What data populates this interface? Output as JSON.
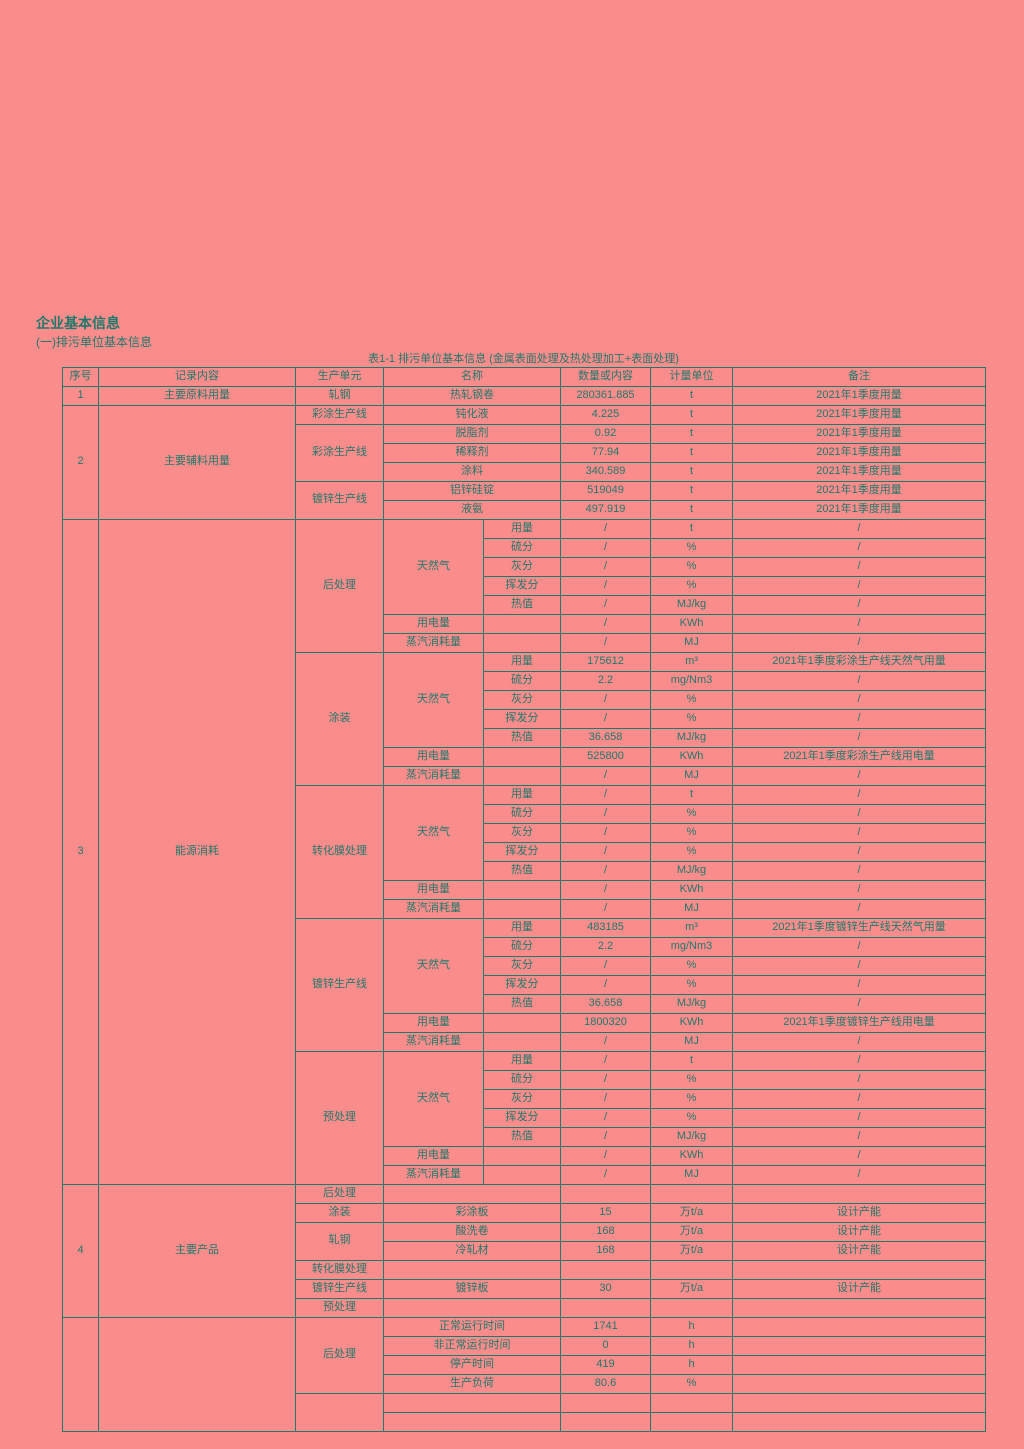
{
  "page": {
    "heading": "企业基本信息",
    "subheading": "(一)排污单位基本信息",
    "table_caption": "表1-1 排污单位基本信息 (金属表面处理及热处理加工+表面处理)"
  },
  "colors": {
    "background": "#fa8c8c",
    "ink": "#1f7a6b"
  },
  "table": {
    "header": [
      {
        "t": "序号"
      },
      {
        "t": "记录内容"
      },
      {
        "t": "生产单元"
      },
      {
        "t": "名称",
        "c": 2
      },
      {
        "t": "数量或内容"
      },
      {
        "t": "计量单位"
      },
      {
        "t": "备注"
      }
    ],
    "rows": [
      [
        {
          "t": "1"
        },
        {
          "t": "主要原料用量"
        },
        {
          "t": "轧钢"
        },
        {
          "t": "热轧钢卷",
          "c": 2
        },
        {
          "t": "280361.885"
        },
        {
          "t": "t"
        },
        {
          "t": "2021年1季度用量"
        }
      ],
      [
        {
          "t": "2",
          "r": 6
        },
        {
          "t": "主要辅料用量",
          "r": 6
        },
        {
          "t": "彩涂生产线"
        },
        {
          "t": "钝化液",
          "c": 2
        },
        {
          "t": "4.225"
        },
        {
          "t": "t"
        },
        {
          "t": "2021年1季度用量"
        }
      ],
      [
        {
          "t": "彩涂生产线",
          "r": 3
        },
        {
          "t": "脱脂剂",
          "c": 2
        },
        {
          "t": "0.92"
        },
        {
          "t": "t"
        },
        {
          "t": "2021年1季度用量"
        }
      ],
      [
        {
          "t": "稀释剂",
          "c": 2
        },
        {
          "t": "77.94"
        },
        {
          "t": "t"
        },
        {
          "t": "2021年1季度用量"
        }
      ],
      [
        {
          "t": "涂料",
          "c": 2
        },
        {
          "t": "340.589"
        },
        {
          "t": "t"
        },
        {
          "t": "2021年1季度用量"
        }
      ],
      [
        {
          "t": "镀锌生产线",
          "r": 2
        },
        {
          "t": "铝锌硅锭",
          "c": 2
        },
        {
          "t": "519049"
        },
        {
          "t": "t"
        },
        {
          "t": "2021年1季度用量"
        }
      ],
      [
        {
          "t": "液氨",
          "c": 2
        },
        {
          "t": "497.919"
        },
        {
          "t": "t"
        },
        {
          "t": "2021年1季度用量"
        }
      ],
      [
        {
          "t": "3",
          "r": 35
        },
        {
          "t": "能源消耗",
          "r": 35
        },
        {
          "t": "后处理",
          "r": 7
        },
        {
          "t": "天然气",
          "r": 5
        },
        {
          "t": "用量"
        },
        {
          "t": "/"
        },
        {
          "t": "t"
        },
        {
          "t": "/"
        }
      ],
      [
        {
          "t": "硫分"
        },
        {
          "t": "/"
        },
        {
          "t": "%"
        },
        {
          "t": "/"
        }
      ],
      [
        {
          "t": "灰分"
        },
        {
          "t": "/"
        },
        {
          "t": "%"
        },
        {
          "t": "/"
        }
      ],
      [
        {
          "t": "挥发分"
        },
        {
          "t": "/"
        },
        {
          "t": "%"
        },
        {
          "t": "/"
        }
      ],
      [
        {
          "t": "热值"
        },
        {
          "t": "/"
        },
        {
          "t": "MJ/kg"
        },
        {
          "t": "/"
        }
      ],
      [
        {
          "t": "用电量"
        },
        {
          "t": ""
        },
        {
          "t": "/"
        },
        {
          "t": "KWh"
        },
        {
          "t": "/"
        }
      ],
      [
        {
          "t": "蒸汽消耗量"
        },
        {
          "t": ""
        },
        {
          "t": "/"
        },
        {
          "t": "MJ"
        },
        {
          "t": "/"
        }
      ],
      [
        {
          "t": "涂装",
          "r": 7
        },
        {
          "t": "天然气",
          "r": 5
        },
        {
          "t": "用量"
        },
        {
          "t": "175612"
        },
        {
          "t": "m³"
        },
        {
          "t": "2021年1季度彩涂生产线天然气用量"
        }
      ],
      [
        {
          "t": "硫分"
        },
        {
          "t": "2.2"
        },
        {
          "t": "mg/Nm3"
        },
        {
          "t": "/"
        }
      ],
      [
        {
          "t": "灰分"
        },
        {
          "t": "/"
        },
        {
          "t": "%"
        },
        {
          "t": "/"
        }
      ],
      [
        {
          "t": "挥发分"
        },
        {
          "t": "/"
        },
        {
          "t": "%"
        },
        {
          "t": "/"
        }
      ],
      [
        {
          "t": "热值"
        },
        {
          "t": "36.658"
        },
        {
          "t": "MJ/kg"
        },
        {
          "t": "/"
        }
      ],
      [
        {
          "t": "用电量"
        },
        {
          "t": ""
        },
        {
          "t": "525800"
        },
        {
          "t": "KWh"
        },
        {
          "t": "2021年1季度彩涂生产线用电量"
        }
      ],
      [
        {
          "t": "蒸汽消耗量"
        },
        {
          "t": ""
        },
        {
          "t": "/"
        },
        {
          "t": "MJ"
        },
        {
          "t": "/"
        }
      ],
      [
        {
          "t": "转化膜处理",
          "r": 7
        },
        {
          "t": "天然气",
          "r": 5
        },
        {
          "t": "用量"
        },
        {
          "t": "/"
        },
        {
          "t": "t"
        },
        {
          "t": "/"
        }
      ],
      [
        {
          "t": "硫分"
        },
        {
          "t": "/"
        },
        {
          "t": "%"
        },
        {
          "t": "/"
        }
      ],
      [
        {
          "t": "灰分"
        },
        {
          "t": "/"
        },
        {
          "t": "%"
        },
        {
          "t": "/"
        }
      ],
      [
        {
          "t": "挥发分"
        },
        {
          "t": "/"
        },
        {
          "t": "%"
        },
        {
          "t": "/"
        }
      ],
      [
        {
          "t": "热值"
        },
        {
          "t": "/"
        },
        {
          "t": "MJ/kg"
        },
        {
          "t": "/"
        }
      ],
      [
        {
          "t": "用电量"
        },
        {
          "t": ""
        },
        {
          "t": "/"
        },
        {
          "t": "KWh"
        },
        {
          "t": "/"
        }
      ],
      [
        {
          "t": "蒸汽消耗量"
        },
        {
          "t": ""
        },
        {
          "t": "/"
        },
        {
          "t": "MJ"
        },
        {
          "t": "/"
        }
      ],
      [
        {
          "t": "镀锌生产线",
          "r": 7
        },
        {
          "t": "天然气",
          "r": 5
        },
        {
          "t": "用量"
        },
        {
          "t": "483185"
        },
        {
          "t": "m³"
        },
        {
          "t": "2021年1季度镀锌生产线天然气用量"
        }
      ],
      [
        {
          "t": "硫分"
        },
        {
          "t": "2.2"
        },
        {
          "t": "mg/Nm3"
        },
        {
          "t": "/"
        }
      ],
      [
        {
          "t": "灰分"
        },
        {
          "t": "/"
        },
        {
          "t": "%"
        },
        {
          "t": "/"
        }
      ],
      [
        {
          "t": "挥发分"
        },
        {
          "t": "/"
        },
        {
          "t": "%"
        },
        {
          "t": "/"
        }
      ],
      [
        {
          "t": "热值"
        },
        {
          "t": "36.658"
        },
        {
          "t": "MJ/kg"
        },
        {
          "t": "/"
        }
      ],
      [
        {
          "t": "用电量"
        },
        {
          "t": ""
        },
        {
          "t": "1800320"
        },
        {
          "t": "KWh"
        },
        {
          "t": "2021年1季度镀锌生产线用电量"
        }
      ],
      [
        {
          "t": "蒸汽消耗量"
        },
        {
          "t": ""
        },
        {
          "t": "/"
        },
        {
          "t": "MJ"
        },
        {
          "t": "/"
        }
      ],
      [
        {
          "t": "预处理",
          "r": 7
        },
        {
          "t": "天然气",
          "r": 5
        },
        {
          "t": "用量"
        },
        {
          "t": "/"
        },
        {
          "t": "t"
        },
        {
          "t": "/"
        }
      ],
      [
        {
          "t": "硫分"
        },
        {
          "t": "/"
        },
        {
          "t": "%"
        },
        {
          "t": "/"
        }
      ],
      [
        {
          "t": "灰分"
        },
        {
          "t": "/"
        },
        {
          "t": "%"
        },
        {
          "t": "/"
        }
      ],
      [
        {
          "t": "挥发分"
        },
        {
          "t": "/"
        },
        {
          "t": "%"
        },
        {
          "t": "/"
        }
      ],
      [
        {
          "t": "热值"
        },
        {
          "t": "/"
        },
        {
          "t": "MJ/kg"
        },
        {
          "t": "/"
        }
      ],
      [
        {
          "t": "用电量"
        },
        {
          "t": ""
        },
        {
          "t": "/"
        },
        {
          "t": "KWh"
        },
        {
          "t": "/"
        }
      ],
      [
        {
          "t": "蒸汽消耗量"
        },
        {
          "t": ""
        },
        {
          "t": "/"
        },
        {
          "t": "MJ"
        },
        {
          "t": "/"
        }
      ],
      [
        {
          "t": "4",
          "r": 7
        },
        {
          "t": "主要产品",
          "r": 7
        },
        {
          "t": "后处理"
        },
        {
          "t": "",
          "c": 2
        },
        {
          "t": ""
        },
        {
          "t": ""
        },
        {
          "t": ""
        }
      ],
      [
        {
          "t": "涂装"
        },
        {
          "t": "彩涂板",
          "c": 2
        },
        {
          "t": "15"
        },
        {
          "t": "万t/a"
        },
        {
          "t": "设计产能"
        }
      ],
      [
        {
          "t": "轧钢",
          "r": 2
        },
        {
          "t": "酸洗卷",
          "c": 2
        },
        {
          "t": "168"
        },
        {
          "t": "万t/a"
        },
        {
          "t": "设计产能"
        }
      ],
      [
        {
          "t": "冷轧材",
          "c": 2
        },
        {
          "t": "168"
        },
        {
          "t": "万t/a"
        },
        {
          "t": "设计产能"
        }
      ],
      [
        {
          "t": "转化膜处理"
        },
        {
          "t": "",
          "c": 2
        },
        {
          "t": ""
        },
        {
          "t": ""
        },
        {
          "t": ""
        }
      ],
      [
        {
          "t": "镀锌生产线"
        },
        {
          "t": "镀锌板",
          "c": 2
        },
        {
          "t": "30"
        },
        {
          "t": "万t/a"
        },
        {
          "t": "设计产能"
        }
      ],
      [
        {
          "t": "预处理"
        },
        {
          "t": "",
          "c": 2
        },
        {
          "t": ""
        },
        {
          "t": ""
        },
        {
          "t": ""
        }
      ],
      [
        {
          "t": "",
          "r": 6
        },
        {
          "t": "",
          "r": 6
        },
        {
          "t": "后处理",
          "r": 4
        },
        {
          "t": "正常运行时间",
          "c": 2
        },
        {
          "t": "1741"
        },
        {
          "t": "h"
        },
        {
          "t": ""
        }
      ],
      [
        {
          "t": "非正常运行时间",
          "c": 2
        },
        {
          "t": "0"
        },
        {
          "t": "h"
        },
        {
          "t": ""
        }
      ],
      [
        {
          "t": "停产时间",
          "c": 2
        },
        {
          "t": "419"
        },
        {
          "t": "h"
        },
        {
          "t": ""
        }
      ],
      [
        {
          "t": "生产负荷",
          "c": 2
        },
        {
          "t": "80.6"
        },
        {
          "t": "%"
        },
        {
          "t": ""
        }
      ],
      [
        {
          "t": "",
          "r": 2
        },
        {
          "t": "",
          "c": 2
        },
        {
          "t": ""
        },
        {
          "t": ""
        },
        {
          "t": ""
        }
      ],
      [
        {
          "t": "",
          "c": 2
        },
        {
          "t": ""
        },
        {
          "t": ""
        },
        {
          "t": ""
        }
      ]
    ]
  }
}
